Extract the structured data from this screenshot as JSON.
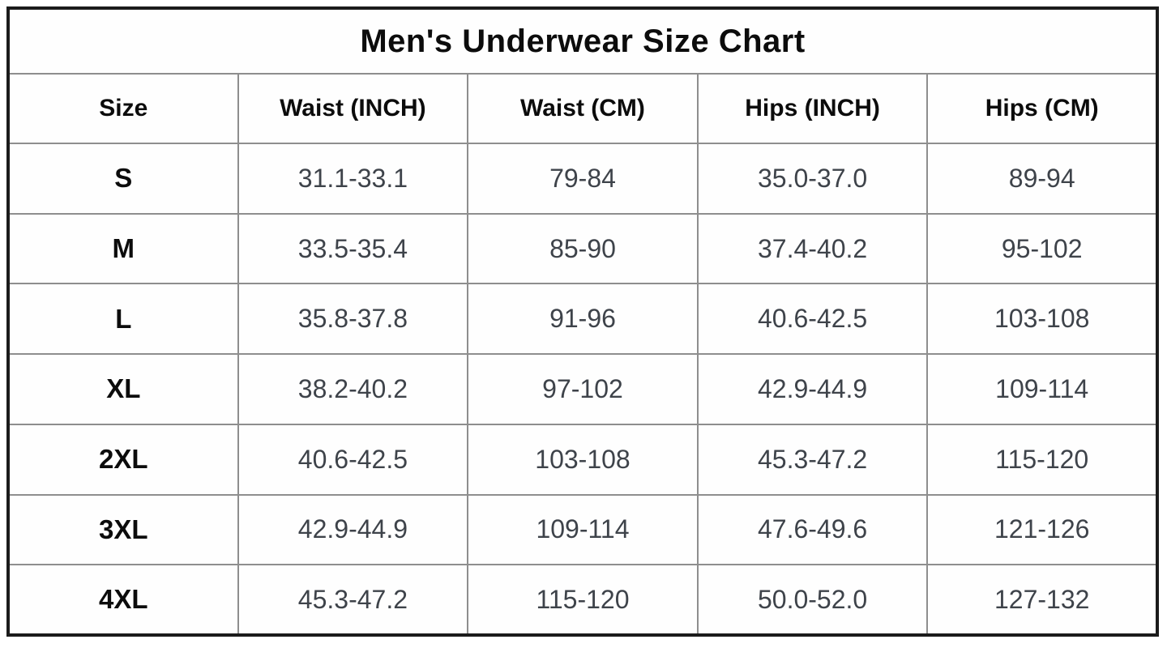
{
  "chart_data": {
    "type": "table",
    "title": "Men's Underwear Size Chart",
    "columns": [
      "Size",
      "Waist (INCH)",
      "Waist (CM)",
      "Hips (INCH)",
      "Hips (CM)"
    ],
    "rows": [
      [
        "S",
        "31.1-33.1",
        "79-84",
        "35.0-37.0",
        "89-94"
      ],
      [
        "M",
        "33.5-35.4",
        "85-90",
        "37.4-40.2",
        "95-102"
      ],
      [
        "L",
        "35.8-37.8",
        "91-96",
        "40.6-42.5",
        "103-108"
      ],
      [
        "XL",
        "38.2-40.2",
        "97-102",
        "42.9-44.9",
        "109-114"
      ],
      [
        "2XL",
        "40.6-42.5",
        "103-108",
        "45.3-47.2",
        "115-120"
      ],
      [
        "3XL",
        "42.9-44.9",
        "109-114",
        "47.6-49.6",
        "121-126"
      ],
      [
        "4XL",
        "45.3-47.2",
        "115-120",
        "50.0-52.0",
        "127-132"
      ]
    ],
    "layout": {
      "outer_border_color": "#1b1b1b",
      "grid_color": "#8e8e8e",
      "header_text_color": "#0c0c0c",
      "value_text_color": "#3e434a",
      "background": "#ffffff"
    }
  }
}
